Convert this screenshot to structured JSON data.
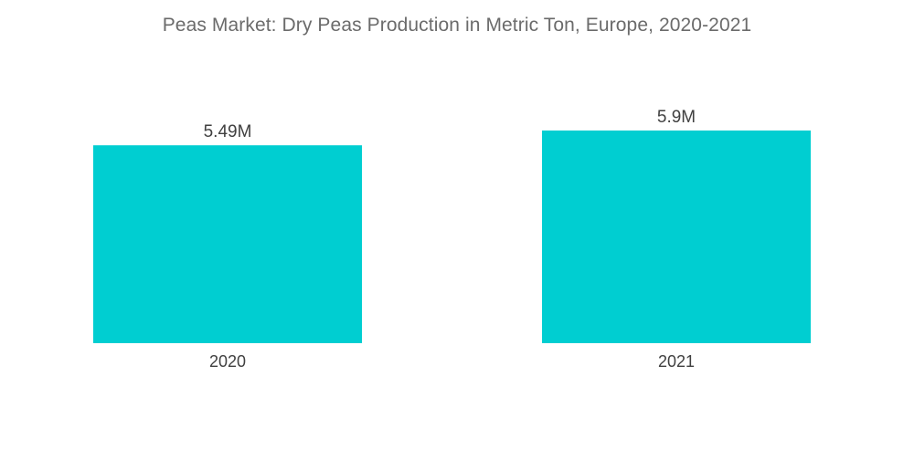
{
  "chart_data": {
    "type": "bar",
    "title": "Peas Market: Dry Peas Production in Metric Ton, Europe, 2020-2021",
    "categories": [
      "2020",
      "2021"
    ],
    "values": [
      5.49,
      5.9
    ],
    "value_labels": [
      "5.49M",
      "5.9M"
    ],
    "xlabel": "",
    "ylabel": "",
    "grid": false,
    "legend": "none",
    "bar_color": "#00CED1"
  }
}
